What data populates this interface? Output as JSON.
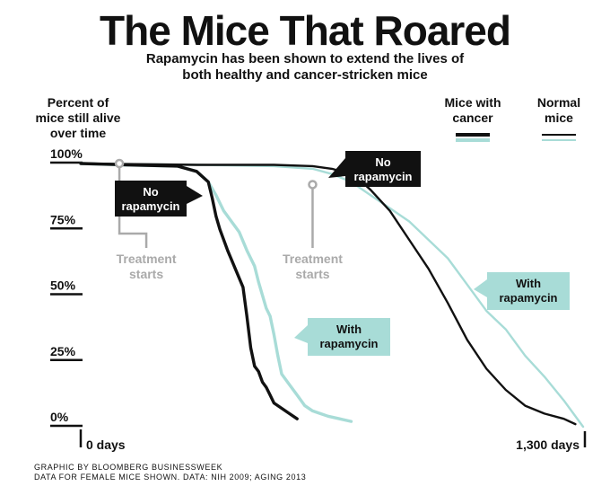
{
  "chart_data": {
    "type": "line",
    "title": "The Mice That Roared",
    "subtitle_line1": "Rapamycin has been shown to extend the lives of",
    "subtitle_line2": "both healthy and cancer-stricken mice",
    "ylabel_lines": [
      "Percent of",
      "mice still alive",
      "over time"
    ],
    "xlabel_start": "0 days",
    "xlabel_end": "1,300 days",
    "xlim": [
      0,
      1300
    ],
    "ylim": [
      0,
      100
    ],
    "y_ticks": [
      {
        "value": 100,
        "label": "100%"
      },
      {
        "value": 75,
        "label": "75%"
      },
      {
        "value": 50,
        "label": "50%"
      },
      {
        "value": 25,
        "label": "25%"
      },
      {
        "value": 0,
        "label": "0%"
      }
    ],
    "legend": {
      "cancer_lines": [
        "Mice with",
        "cancer"
      ],
      "normal_lines": [
        "Normal",
        "mice"
      ]
    },
    "colors": {
      "control": "#111111",
      "treated": "#a8dcd7",
      "grey": "#aaaaaa"
    },
    "series": [
      {
        "name": "Mice with cancer, no rapamycin",
        "group": "cancer",
        "treatment": "none",
        "x": [
          0,
          120,
          250,
          300,
          330,
          340,
          350,
          360,
          380,
          400,
          420,
          430,
          440,
          450,
          460,
          470,
          480,
          490,
          500,
          520,
          540,
          560
        ],
        "y": [
          100,
          99.5,
          99,
          97,
          93,
          87,
          80,
          75,
          67,
          60,
          53,
          42,
          30,
          23,
          21,
          17,
          15,
          12,
          9,
          7,
          5,
          3
        ]
      },
      {
        "name": "Mice with cancer, with rapamycin",
        "group": "cancer",
        "treatment": "rapamycin",
        "x": [
          0,
          100,
          250,
          300,
          330,
          350,
          370,
          390,
          410,
          430,
          450,
          460,
          470,
          480,
          490,
          500,
          510,
          520,
          540,
          560,
          580,
          600,
          620,
          640,
          670,
          700
        ],
        "y": [
          100,
          99.5,
          99,
          97,
          93,
          88,
          82,
          78,
          74,
          67,
          61,
          55,
          50,
          45,
          42,
          35,
          27,
          20,
          16,
          12,
          8,
          6,
          5,
          4,
          3,
          2
        ]
      },
      {
        "name": "Normal mice, no rapamycin",
        "group": "normal",
        "treatment": "none",
        "x": [
          0,
          300,
          500,
          600,
          650,
          700,
          720,
          750,
          800,
          850,
          900,
          950,
          1000,
          1050,
          1100,
          1150,
          1200,
          1250,
          1280
        ],
        "y": [
          100,
          99.5,
          99.5,
          99,
          98,
          96,
          94,
          90,
          82,
          71,
          60,
          47,
          33,
          22,
          14,
          8,
          5,
          3,
          1
        ]
      },
      {
        "name": "Normal mice, with rapamycin",
        "group": "normal",
        "treatment": "rapamycin",
        "x": [
          0,
          300,
          500,
          600,
          650,
          700,
          750,
          800,
          850,
          900,
          950,
          1000,
          1050,
          1100,
          1150,
          1200,
          1250,
          1300
        ],
        "y": [
          100,
          99.5,
          99,
          98,
          96,
          93,
          88,
          83,
          78,
          71,
          64,
          54,
          44,
          37,
          27,
          19,
          10,
          0
        ]
      }
    ],
    "callouts": [
      {
        "id": "cancer-no",
        "lines": [
          "No",
          "rapamycin"
        ],
        "style": "dark",
        "pointer": "right"
      },
      {
        "id": "cancer-with",
        "lines": [
          "With",
          "rapamycin"
        ],
        "style": "teal",
        "pointer": "left"
      },
      {
        "id": "normal-no",
        "lines": [
          "No",
          "rapamycin"
        ],
        "style": "dark",
        "pointer": "left"
      },
      {
        "id": "normal-with",
        "lines": [
          "With",
          "rapamycin"
        ],
        "style": "teal",
        "pointer": "left"
      }
    ],
    "annotations": [
      {
        "id": "treatment-cancer",
        "lines": [
          "Treatment",
          "starts"
        ],
        "x": 100,
        "y": 100
      },
      {
        "id": "treatment-normal",
        "lines": [
          "Treatment",
          "starts"
        ],
        "x": 600,
        "y": 92
      }
    ]
  },
  "footer": {
    "line1": "GRAPHIC BY BLOOMBERG BUSINESSWEEK",
    "line2": "DATA FOR FEMALE MICE SHOWN. DATA: NIH 2009; AGING 2013"
  }
}
